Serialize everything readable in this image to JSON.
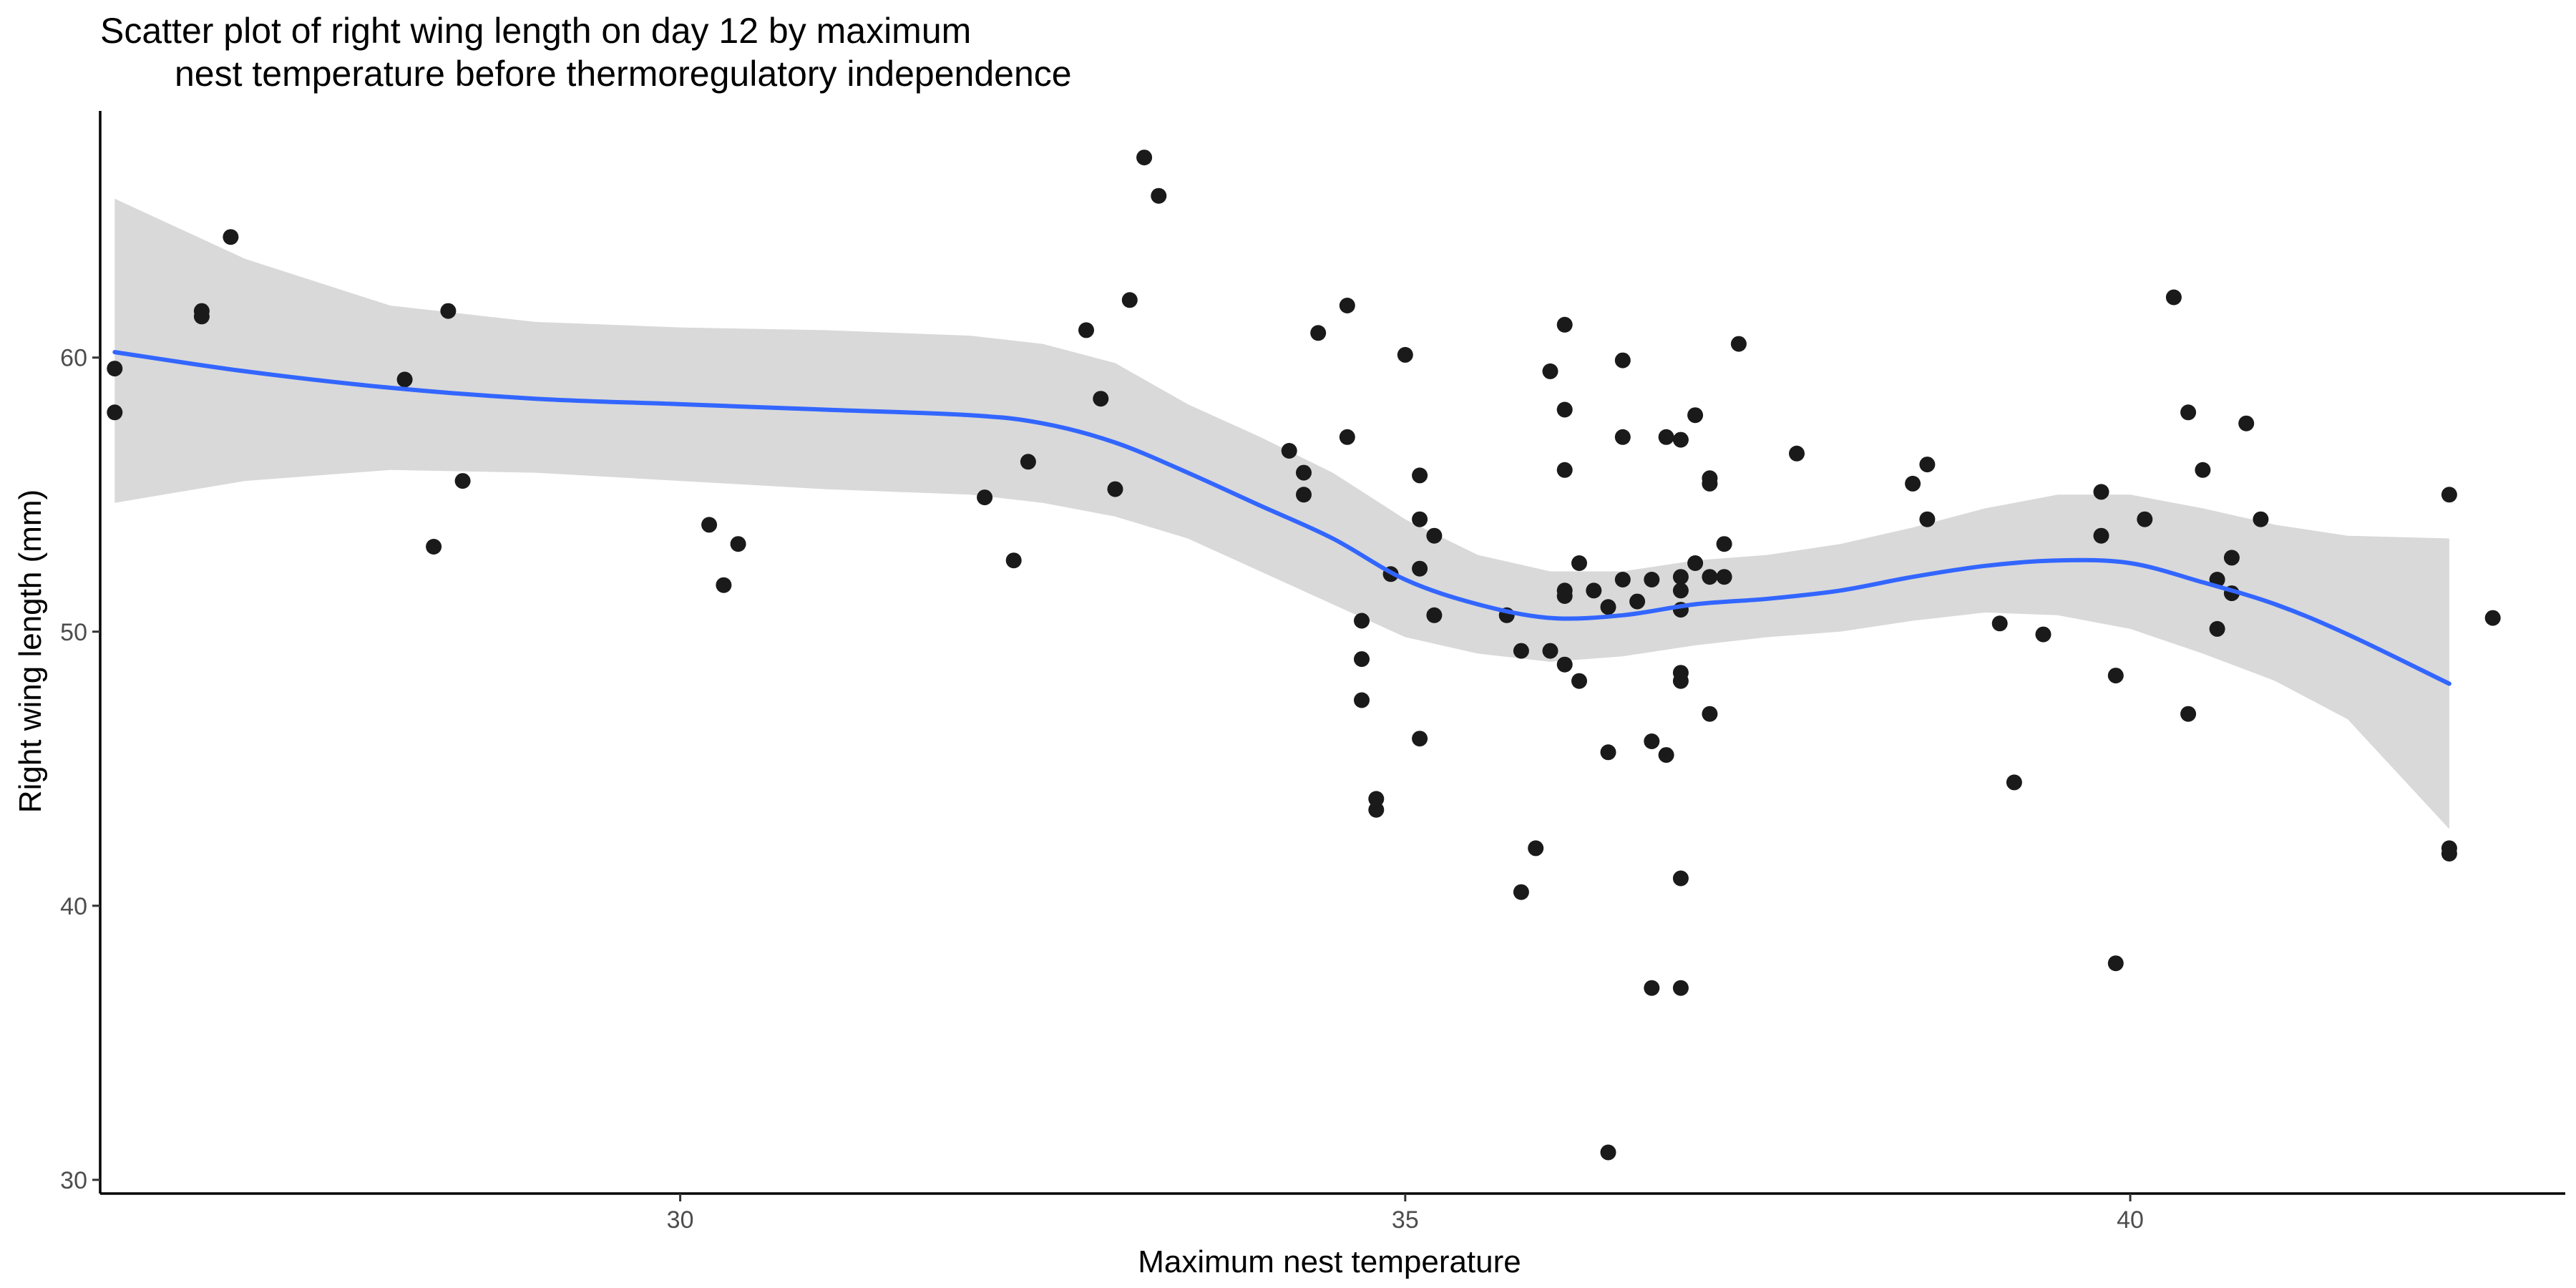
{
  "chart_data": {
    "type": "scatter",
    "title": "Scatter plot of right wing length on day 12 by maximum\n      nest temperature before thermoregulatory independence",
    "title_lines": [
      "Scatter plot of right wing length on day 12 by maximum",
      "nest temperature before thermoregulatory independence"
    ],
    "xlabel": "Maximum nest temperature",
    "ylabel": "Right wing length (mm)",
    "xlim": [
      26.0,
      43.0
    ],
    "ylim": [
      29.5,
      69.0
    ],
    "x_ticks": [
      30,
      35,
      40
    ],
    "y_ticks": [
      30,
      40,
      50,
      60
    ],
    "grid": false,
    "legend": "none",
    "colors": {
      "points": "#1a1a1a",
      "smooth_line": "#3366ff",
      "confidence_band": "#d9d9d9",
      "axis": "#000000",
      "tick_labels": "#4d4d4d"
    },
    "points": [
      {
        "x": 26.1,
        "y": 59.6
      },
      {
        "x": 26.1,
        "y": 58.0
      },
      {
        "x": 26.7,
        "y": 61.7
      },
      {
        "x": 26.7,
        "y": 61.5
      },
      {
        "x": 26.9,
        "y": 64.4
      },
      {
        "x": 28.1,
        "y": 59.2
      },
      {
        "x": 28.3,
        "y": 53.1
      },
      {
        "x": 28.4,
        "y": 61.7
      },
      {
        "x": 28.5,
        "y": 55.5
      },
      {
        "x": 30.2,
        "y": 53.9
      },
      {
        "x": 30.3,
        "y": 51.7
      },
      {
        "x": 30.4,
        "y": 53.2
      },
      {
        "x": 32.1,
        "y": 54.9
      },
      {
        "x": 32.3,
        "y": 52.6
      },
      {
        "x": 32.4,
        "y": 56.2
      },
      {
        "x": 32.8,
        "y": 61.0
      },
      {
        "x": 32.9,
        "y": 58.5
      },
      {
        "x": 33.0,
        "y": 55.2
      },
      {
        "x": 33.1,
        "y": 62.1
      },
      {
        "x": 33.2,
        "y": 67.3
      },
      {
        "x": 33.3,
        "y": 65.9
      },
      {
        "x": 34.2,
        "y": 56.6
      },
      {
        "x": 34.3,
        "y": 55.8
      },
      {
        "x": 34.3,
        "y": 55.0
      },
      {
        "x": 34.4,
        "y": 60.9
      },
      {
        "x": 34.6,
        "y": 61.9
      },
      {
        "x": 34.6,
        "y": 57.1
      },
      {
        "x": 34.7,
        "y": 50.4
      },
      {
        "x": 34.7,
        "y": 47.5
      },
      {
        "x": 34.7,
        "y": 49.0
      },
      {
        "x": 34.8,
        "y": 43.5
      },
      {
        "x": 34.8,
        "y": 43.9
      },
      {
        "x": 34.9,
        "y": 52.1
      },
      {
        "x": 35.0,
        "y": 60.1
      },
      {
        "x": 35.1,
        "y": 55.7
      },
      {
        "x": 35.1,
        "y": 54.1
      },
      {
        "x": 35.1,
        "y": 52.3
      },
      {
        "x": 35.1,
        "y": 46.1
      },
      {
        "x": 35.2,
        "y": 53.5
      },
      {
        "x": 35.2,
        "y": 50.6
      },
      {
        "x": 35.7,
        "y": 50.6
      },
      {
        "x": 35.8,
        "y": 49.3
      },
      {
        "x": 35.8,
        "y": 40.5
      },
      {
        "x": 35.9,
        "y": 42.1
      },
      {
        "x": 36.0,
        "y": 59.5
      },
      {
        "x": 36.0,
        "y": 49.3
      },
      {
        "x": 36.1,
        "y": 61.2
      },
      {
        "x": 36.1,
        "y": 58.1
      },
      {
        "x": 36.1,
        "y": 55.9
      },
      {
        "x": 36.1,
        "y": 51.5
      },
      {
        "x": 36.1,
        "y": 51.3
      },
      {
        "x": 36.1,
        "y": 48.8
      },
      {
        "x": 36.2,
        "y": 48.2
      },
      {
        "x": 36.2,
        "y": 52.5
      },
      {
        "x": 36.3,
        "y": 51.5
      },
      {
        "x": 36.4,
        "y": 50.9
      },
      {
        "x": 36.4,
        "y": 45.6
      },
      {
        "x": 36.4,
        "y": 31.0
      },
      {
        "x": 36.5,
        "y": 59.9
      },
      {
        "x": 36.5,
        "y": 57.1
      },
      {
        "x": 36.5,
        "y": 51.9
      },
      {
        "x": 36.6,
        "y": 51.1
      },
      {
        "x": 36.7,
        "y": 51.9
      },
      {
        "x": 36.7,
        "y": 46.0
      },
      {
        "x": 36.7,
        "y": 37.0
      },
      {
        "x": 36.8,
        "y": 57.1
      },
      {
        "x": 36.8,
        "y": 45.5
      },
      {
        "x": 36.9,
        "y": 52.0
      },
      {
        "x": 36.9,
        "y": 51.5
      },
      {
        "x": 36.9,
        "y": 50.8
      },
      {
        "x": 36.9,
        "y": 57.0
      },
      {
        "x": 36.9,
        "y": 48.5
      },
      {
        "x": 36.9,
        "y": 48.2
      },
      {
        "x": 36.9,
        "y": 41.0
      },
      {
        "x": 36.9,
        "y": 37.0
      },
      {
        "x": 37.0,
        "y": 57.9
      },
      {
        "x": 37.0,
        "y": 52.5
      },
      {
        "x": 37.1,
        "y": 52.0
      },
      {
        "x": 37.1,
        "y": 55.6
      },
      {
        "x": 37.1,
        "y": 55.4
      },
      {
        "x": 37.1,
        "y": 47.0
      },
      {
        "x": 37.2,
        "y": 52.0
      },
      {
        "x": 37.2,
        "y": 53.2
      },
      {
        "x": 37.3,
        "y": 60.5
      },
      {
        "x": 37.7,
        "y": 56.5
      },
      {
        "x": 38.5,
        "y": 55.4
      },
      {
        "x": 38.6,
        "y": 56.1
      },
      {
        "x": 38.6,
        "y": 54.1
      },
      {
        "x": 39.1,
        "y": 50.3
      },
      {
        "x": 39.2,
        "y": 44.5
      },
      {
        "x": 39.4,
        "y": 49.9
      },
      {
        "x": 39.8,
        "y": 55.1
      },
      {
        "x": 39.8,
        "y": 53.5
      },
      {
        "x": 39.9,
        "y": 48.4
      },
      {
        "x": 39.9,
        "y": 37.9
      },
      {
        "x": 40.1,
        "y": 54.1
      },
      {
        "x": 40.3,
        "y": 62.2
      },
      {
        "x": 40.4,
        "y": 58.0
      },
      {
        "x": 40.4,
        "y": 47.0
      },
      {
        "x": 40.5,
        "y": 55.9
      },
      {
        "x": 40.6,
        "y": 50.1
      },
      {
        "x": 40.6,
        "y": 51.9
      },
      {
        "x": 40.7,
        "y": 51.4
      },
      {
        "x": 40.7,
        "y": 52.7
      },
      {
        "x": 40.8,
        "y": 57.6
      },
      {
        "x": 40.9,
        "y": 54.1
      },
      {
        "x": 42.2,
        "y": 55.0
      },
      {
        "x": 42.2,
        "y": 42.1
      },
      {
        "x": 42.2,
        "y": 41.9
      },
      {
        "x": 42.5,
        "y": 50.5
      }
    ],
    "smooth": {
      "method": "loess",
      "x": [
        26.1,
        27.0,
        28.0,
        29.0,
        30.0,
        31.0,
        32.0,
        32.5,
        33.0,
        33.5,
        34.0,
        34.5,
        35.0,
        35.5,
        36.0,
        36.5,
        37.0,
        37.5,
        38.0,
        38.5,
        39.0,
        39.5,
        40.0,
        40.5,
        41.0,
        41.5,
        42.2
      ],
      "y": [
        60.2,
        59.5,
        58.9,
        58.5,
        58.3,
        58.1,
        57.9,
        57.6,
        56.9,
        55.8,
        54.6,
        53.4,
        51.9,
        51.0,
        50.5,
        50.6,
        51.0,
        51.2,
        51.5,
        52.0,
        52.4,
        52.6,
        52.5,
        51.8,
        51.0,
        49.9,
        48.1
      ],
      "ci_lower": [
        54.7,
        55.5,
        55.9,
        55.8,
        55.5,
        55.2,
        55.0,
        54.7,
        54.2,
        53.4,
        52.2,
        51.0,
        49.8,
        49.2,
        48.9,
        49.1,
        49.5,
        49.8,
        50.0,
        50.4,
        50.7,
        50.6,
        50.1,
        49.2,
        48.2,
        46.8,
        42.8
      ],
      "ci_upper": [
        65.8,
        63.6,
        61.9,
        61.3,
        61.1,
        61.0,
        60.8,
        60.5,
        59.8,
        58.3,
        57.1,
        55.8,
        54.1,
        52.8,
        52.2,
        52.2,
        52.6,
        52.8,
        53.2,
        53.8,
        54.5,
        55.0,
        55.0,
        54.5,
        53.9,
        53.5,
        53.4
      ]
    }
  }
}
